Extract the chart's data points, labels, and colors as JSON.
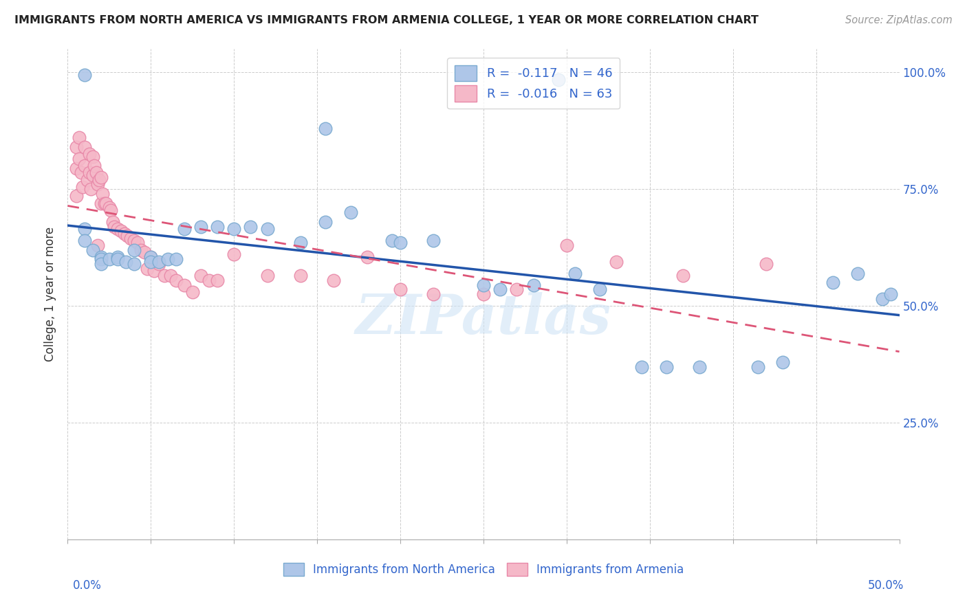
{
  "title": "IMMIGRANTS FROM NORTH AMERICA VS IMMIGRANTS FROM ARMENIA COLLEGE, 1 YEAR OR MORE CORRELATION CHART",
  "source": "Source: ZipAtlas.com",
  "ylabel": "College, 1 year or more",
  "legend_blue_Rval": "-0.117",
  "legend_blue_Nval": "46",
  "legend_pink_Rval": "-0.016",
  "legend_pink_Nval": "63",
  "blue_color": "#aec6e8",
  "blue_edge_color": "#7aaad0",
  "pink_color": "#f5b8c8",
  "pink_edge_color": "#e888a8",
  "blue_line_color": "#2255aa",
  "pink_line_color": "#dd5577",
  "watermark": "ZIPatlas",
  "xlim": [
    0.0,
    0.5
  ],
  "ylim": [
    0.0,
    1.05
  ],
  "blue_scatter_x": [
    0.295,
    0.155,
    0.01,
    0.01,
    0.01,
    0.015,
    0.02,
    0.02,
    0.02,
    0.025,
    0.03,
    0.03,
    0.035,
    0.04,
    0.04,
    0.05,
    0.05,
    0.055,
    0.06,
    0.065,
    0.07,
    0.08,
    0.09,
    0.1,
    0.11,
    0.12,
    0.14,
    0.155,
    0.17,
    0.195,
    0.2,
    0.22,
    0.25,
    0.26,
    0.28,
    0.305,
    0.32,
    0.345,
    0.36,
    0.38,
    0.415,
    0.43,
    0.46,
    0.475,
    0.49,
    0.495
  ],
  "blue_scatter_y": [
    0.985,
    0.88,
    0.995,
    0.665,
    0.64,
    0.62,
    0.605,
    0.6,
    0.59,
    0.6,
    0.605,
    0.6,
    0.595,
    0.59,
    0.62,
    0.605,
    0.595,
    0.595,
    0.6,
    0.6,
    0.665,
    0.67,
    0.67,
    0.665,
    0.67,
    0.665,
    0.635,
    0.68,
    0.7,
    0.64,
    0.635,
    0.64,
    0.545,
    0.535,
    0.545,
    0.57,
    0.535,
    0.37,
    0.37,
    0.37,
    0.37,
    0.38,
    0.55,
    0.57,
    0.515,
    0.525
  ],
  "pink_scatter_x": [
    0.005,
    0.005,
    0.005,
    0.007,
    0.007,
    0.008,
    0.009,
    0.01,
    0.01,
    0.012,
    0.013,
    0.013,
    0.014,
    0.015,
    0.015,
    0.016,
    0.017,
    0.018,
    0.018,
    0.019,
    0.02,
    0.02,
    0.021,
    0.022,
    0.023,
    0.025,
    0.026,
    0.027,
    0.028,
    0.03,
    0.032,
    0.034,
    0.036,
    0.038,
    0.04,
    0.042,
    0.044,
    0.046,
    0.048,
    0.05,
    0.052,
    0.055,
    0.058,
    0.062,
    0.065,
    0.07,
    0.075,
    0.08,
    0.085,
    0.09,
    0.1,
    0.12,
    0.14,
    0.16,
    0.18,
    0.2,
    0.22,
    0.25,
    0.27,
    0.3,
    0.33,
    0.37,
    0.42
  ],
  "pink_scatter_y": [
    0.84,
    0.795,
    0.735,
    0.86,
    0.815,
    0.785,
    0.755,
    0.84,
    0.8,
    0.77,
    0.825,
    0.785,
    0.75,
    0.82,
    0.78,
    0.8,
    0.785,
    0.76,
    0.63,
    0.77,
    0.775,
    0.72,
    0.74,
    0.72,
    0.72,
    0.71,
    0.705,
    0.68,
    0.67,
    0.665,
    0.66,
    0.655,
    0.65,
    0.645,
    0.64,
    0.635,
    0.62,
    0.615,
    0.58,
    0.605,
    0.575,
    0.59,
    0.565,
    0.565,
    0.555,
    0.545,
    0.53,
    0.565,
    0.555,
    0.555,
    0.61,
    0.565,
    0.565,
    0.555,
    0.605,
    0.535,
    0.525,
    0.525,
    0.535,
    0.63,
    0.595,
    0.565,
    0.59
  ]
}
